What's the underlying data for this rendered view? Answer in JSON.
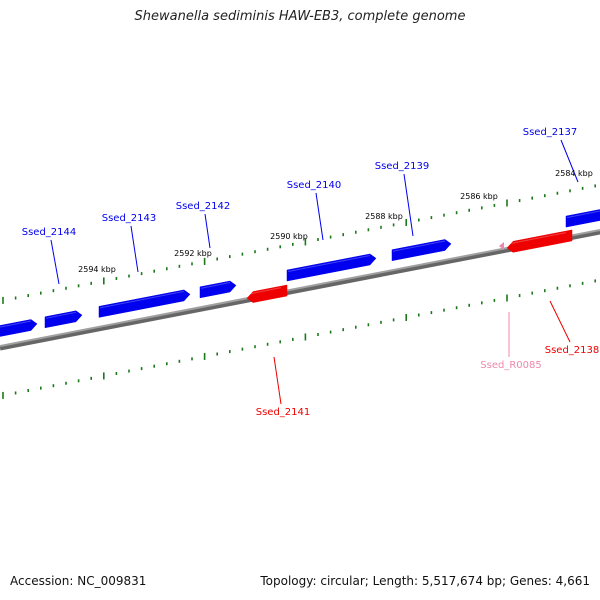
{
  "title": "Shewanella sediminis HAW-EB3, complete genome",
  "footer": {
    "accession": "Accession: NC_009831",
    "summary": "Topology: circular; Length: 5,517,674 bp; Genes: 4,661"
  },
  "colors": {
    "forward_gene": "#0000ee",
    "reverse_gene": "#ee0000",
    "rna_gene": "#ee88aa",
    "ruler_tick": "#1a7a1a",
    "backbone": "#888888"
  },
  "kbp_labels": [
    "2584 kbp",
    "2586 kbp",
    "2588 kbp",
    "2590 kbp",
    "2592 kbp",
    "2594 kbp"
  ],
  "genes": [
    {
      "name": "Ssed_2137",
      "strand": "forward",
      "kind": "cds"
    },
    {
      "name": "Ssed_2139",
      "strand": "forward",
      "kind": "cds"
    },
    {
      "name": "Ssed_2140",
      "strand": "forward",
      "kind": "cds"
    },
    {
      "name": "Ssed_2142",
      "strand": "forward",
      "kind": "cds"
    },
    {
      "name": "Ssed_2143",
      "strand": "forward",
      "kind": "cds"
    },
    {
      "name": "Ssed_2144",
      "strand": "forward",
      "kind": "cds"
    },
    {
      "name": "Ssed_2141",
      "strand": "reverse",
      "kind": "cds"
    },
    {
      "name": "Ssed_2138",
      "strand": "reverse",
      "kind": "cds"
    },
    {
      "name": "Ssed_R0085",
      "strand": "reverse",
      "kind": "rna"
    }
  ]
}
